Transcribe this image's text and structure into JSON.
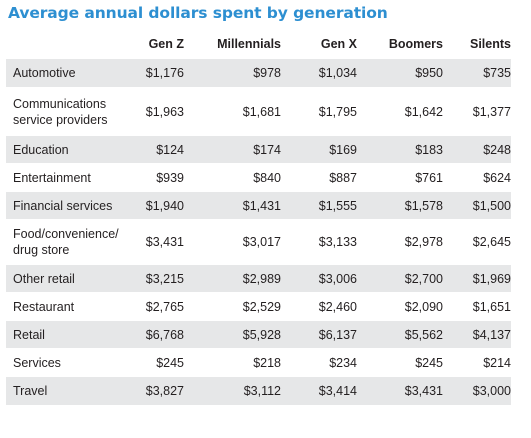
{
  "chart_data": {
    "type": "table",
    "title": "Average annual dollars spent by generation",
    "columns": [
      "Gen Z",
      "Millennials",
      "Gen X",
      "Boomers",
      "Silents"
    ],
    "rows": [
      {
        "category": "Automotive",
        "values": [
          "$1,176",
          "$978",
          "$1,034",
          "$950",
          "$735"
        ]
      },
      {
        "category": "Communications service providers",
        "values": [
          "$1,963",
          "$1,681",
          "$1,795",
          "$1,642",
          "$1,377"
        ]
      },
      {
        "category": "Education",
        "values": [
          "$124",
          "$174",
          "$169",
          "$183",
          "$248"
        ]
      },
      {
        "category": "Entertainment",
        "values": [
          "$939",
          "$840",
          "$887",
          "$761",
          "$624"
        ]
      },
      {
        "category": "Financial services",
        "values": [
          "$1,940",
          "$1,431",
          "$1,555",
          "$1,578",
          "$1,500"
        ]
      },
      {
        "category": "Food/convenience/ drug store",
        "values": [
          "$3,431",
          "$3,017",
          "$3,133",
          "$2,978",
          "$2,645"
        ]
      },
      {
        "category": "Other retail",
        "values": [
          "$3,215",
          "$2,989",
          "$3,006",
          "$2,700",
          "$1,969"
        ]
      },
      {
        "category": "Restaurant",
        "values": [
          "$2,765",
          "$2,529",
          "$2,460",
          "$2,090",
          "$1,651"
        ]
      },
      {
        "category": "Retail",
        "values": [
          "$6,768",
          "$5,928",
          "$6,137",
          "$5,562",
          "$4,137"
        ]
      },
      {
        "category": "Services",
        "values": [
          "$245",
          "$218",
          "$234",
          "$245",
          "$214"
        ]
      },
      {
        "category": "Travel",
        "values": [
          "$3,827",
          "$3,112",
          "$3,414",
          "$3,431",
          "$3,000"
        ]
      }
    ],
    "colors": {
      "title": "#2d8fd1",
      "row_shade": "#e6e7e8",
      "text": "#231f20"
    }
  }
}
